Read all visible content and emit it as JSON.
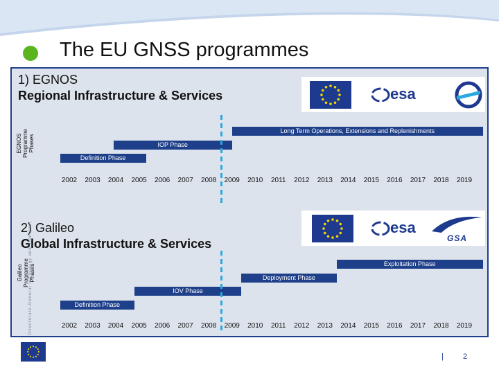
{
  "slide": {
    "title": "The EU GNSS programmes",
    "accent": "#5bb520",
    "bar_color": "#1e3f8a",
    "marker_color": "#29a9df",
    "page_number": "2",
    "footer_separator": "|"
  },
  "egnos": {
    "heading_line1": "1) EGNOS",
    "heading_line2": "Regional Infrastructure & Services",
    "side_label_line1": "EGNOS",
    "side_label_line2": "Programme",
    "side_label_line3": "Phases",
    "logos": [
      "eu-flag-icon",
      "esa-logo",
      "eurocontrol-logo"
    ],
    "esa_text": "esa",
    "phases": [
      {
        "label": "Long Term Operations, Extensions and Replenishments",
        "start": 2009,
        "end": 2019.8
      },
      {
        "label": "IOP Phase",
        "start": 2003.9,
        "end": 2009
      },
      {
        "label": "Definition Phase",
        "start": 2001.6,
        "end": 2005.3
      }
    ],
    "years": [
      "2002",
      "2003",
      "2004",
      "2005",
      "2006",
      "2007",
      "2008",
      "2009",
      "2010",
      "2011",
      "2012",
      "2013",
      "2014",
      "2015",
      "2016",
      "2017",
      "2018",
      "2019"
    ]
  },
  "galileo": {
    "heading_line1": "2) Galileo",
    "heading_line2": "Global Infrastructure & Services",
    "side_label_line1": "Galileo",
    "side_label_line2": "Programme",
    "side_label_line3": "Phases",
    "watermark": "Directorate-General for Energy and Transport",
    "logos": [
      "eu-flag-icon",
      "esa-logo",
      "gsa-logo"
    ],
    "esa_text": "esa",
    "gsa_text": "GSA",
    "phases": [
      {
        "label": "Exploitation Phase",
        "start": 2013.5,
        "end": 2019.8
      },
      {
        "label": "Deployment Phase",
        "start": 2009.4,
        "end": 2013.5
      },
      {
        "label": "IOV Phase",
        "start": 2004.8,
        "end": 2009.4
      },
      {
        "label": "Definition Phase",
        "start": 2001.6,
        "end": 2004.8
      }
    ],
    "years": [
      "2002",
      "2003",
      "2004",
      "2005",
      "2006",
      "2007",
      "2008",
      "2009",
      "2010",
      "2011",
      "2012",
      "2013",
      "2014",
      "2015",
      "2016",
      "2017",
      "2018",
      "2019"
    ]
  }
}
